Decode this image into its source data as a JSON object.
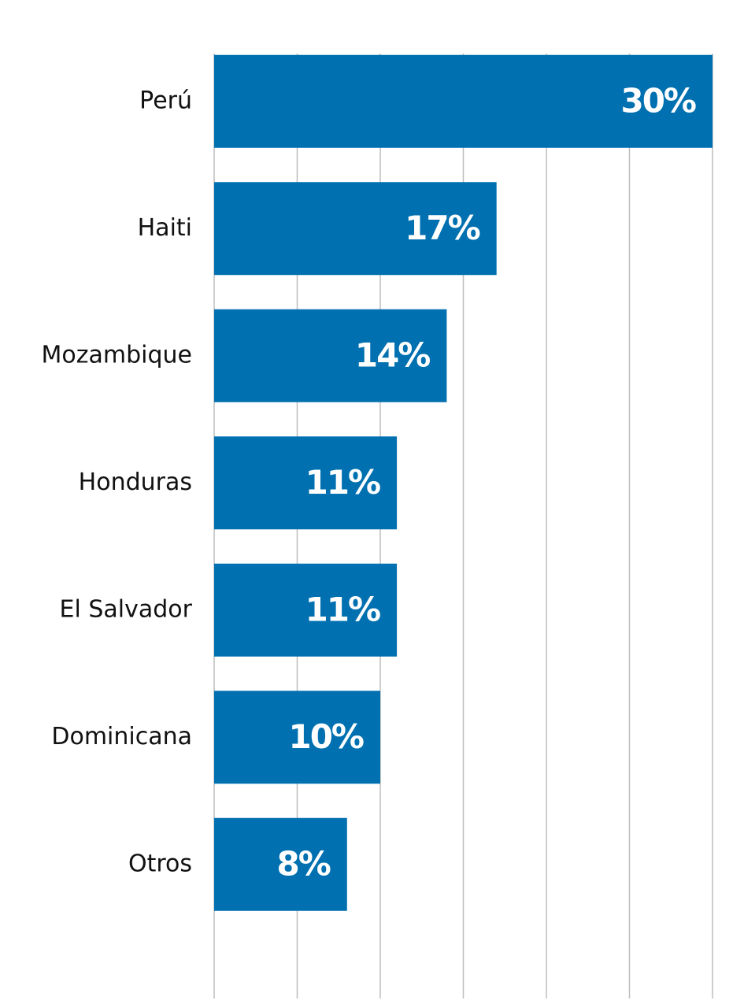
{
  "chart_data": {
    "type": "barh",
    "categories": [
      "Perú",
      "Haiti",
      "Mozambique",
      "Honduras",
      "El Salvador",
      "Dominicana",
      "Otros"
    ],
    "values": [
      30,
      17,
      14,
      11,
      11,
      10,
      8
    ],
    "value_labels": [
      "30%",
      "17%",
      "14%",
      "11%",
      "11%",
      "10%",
      "8%"
    ],
    "color": "#0070b0",
    "xlim": [
      0,
      30
    ],
    "xticks": [
      0,
      5,
      10,
      15,
      20,
      25,
      30
    ],
    "grid": true
  }
}
